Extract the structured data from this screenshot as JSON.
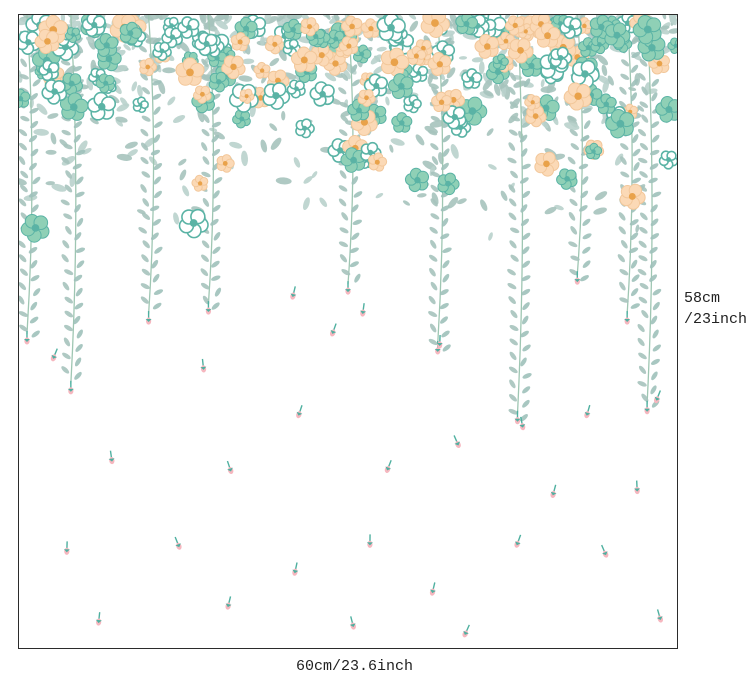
{
  "image": {
    "subject": "hanging-flowers-decal",
    "colors": {
      "peach": "#fbd9b6",
      "peach_center": "#e9a24a",
      "mint": "#8fd0b6",
      "teal": "#5ab3a5",
      "sage_leaf": "#a6c3bd",
      "bud_pink": "#f6b7bf",
      "bud_teal": "#4fb0a0",
      "vine": "#9ec6b2"
    }
  },
  "dimensions": {
    "width_label": "60cm/23.6inch",
    "height_line1": "58cm",
    "height_line2": "/23inch"
  }
}
